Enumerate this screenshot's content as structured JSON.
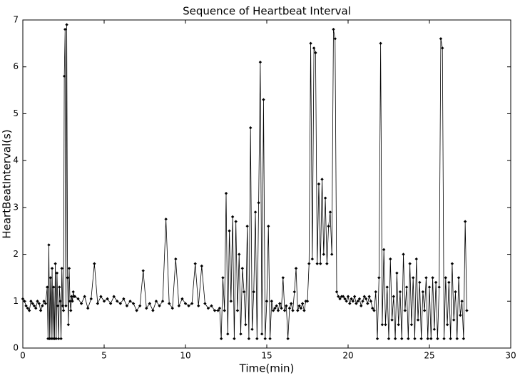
{
  "chart_data": {
    "type": "line",
    "title": "Sequence of Heartbeat Interval",
    "x_label": "Time(min)",
    "y_label": "HeartBeatInterval(s)",
    "xlim": [
      0,
      30
    ],
    "ylim": [
      0,
      7
    ],
    "xticks": [
      0,
      5,
      10,
      15,
      20,
      25,
      30
    ],
    "yticks": [
      0,
      1,
      2,
      3,
      4,
      5,
      6,
      7
    ],
    "x": [
      0,
      0.1,
      0.2,
      0.3,
      0.4,
      0.5,
      0.6,
      0.7,
      0.8,
      0.9,
      1,
      1.1,
      1.2,
      1.3,
      1.4,
      1.5,
      1.55,
      1.6,
      1.65,
      1.7,
      1.75,
      1.8,
      1.85,
      1.9,
      1.95,
      2,
      2.05,
      2.1,
      2.15,
      2.2,
      2.25,
      2.3,
      2.35,
      2.4,
      2.45,
      2.5,
      2.55,
      2.6,
      2.65,
      2.7,
      2.75,
      2.8,
      2.85,
      2.9,
      2.95,
      3,
      3.05,
      3.1,
      3.15,
      3.2,
      3.4,
      3.6,
      3.8,
      4,
      4.2,
      4.4,
      4.6,
      4.8,
      5,
      5.2,
      5.4,
      5.6,
      5.8,
      6,
      6.2,
      6.4,
      6.6,
      6.8,
      7,
      7.2,
      7.4,
      7.6,
      7.8,
      8,
      8.2,
      8.4,
      8.6,
      8.8,
      9,
      9.2,
      9.4,
      9.6,
      9.8,
      10,
      10.2,
      10.4,
      10.6,
      10.8,
      11,
      11.2,
      11.4,
      11.6,
      11.8,
      12,
      12.1,
      12.2,
      12.3,
      12.4,
      12.5,
      12.6,
      12.7,
      12.8,
      12.9,
      13,
      13.1,
      13.2,
      13.3,
      13.4,
      13.5,
      13.6,
      13.7,
      13.8,
      13.9,
      14,
      14.1,
      14.2,
      14.3,
      14.4,
      14.5,
      14.6,
      14.7,
      14.8,
      14.9,
      15,
      15.1,
      15.2,
      15.3,
      15.4,
      15.5,
      15.6,
      15.7,
      15.8,
      15.9,
      16,
      16.1,
      16.2,
      16.3,
      16.4,
      16.5,
      16.6,
      16.7,
      16.8,
      16.9,
      17,
      17.1,
      17.2,
      17.3,
      17.4,
      17.5,
      17.6,
      17.7,
      17.8,
      17.9,
      18,
      18.1,
      18.2,
      18.3,
      18.4,
      18.5,
      18.6,
      18.7,
      18.8,
      18.9,
      19,
      19.1,
      19.2,
      19.3,
      19.4,
      19.5,
      19.6,
      19.7,
      19.8,
      19.9,
      20,
      20.1,
      20.2,
      20.3,
      20.4,
      20.5,
      20.6,
      20.7,
      20.8,
      20.9,
      21,
      21.1,
      21.2,
      21.3,
      21.4,
      21.5,
      21.6,
      21.7,
      21.8,
      21.9,
      22,
      22.1,
      22.2,
      22.3,
      22.4,
      22.5,
      22.6,
      22.7,
      22.8,
      22.9,
      23,
      23.1,
      23.2,
      23.3,
      23.4,
      23.5,
      23.6,
      23.7,
      23.8,
      23.9,
      24,
      24.1,
      24.2,
      24.3,
      24.4,
      24.5,
      24.6,
      24.7,
      24.8,
      24.9,
      25,
      25.1,
      25.2,
      25.3,
      25.4,
      25.5,
      25.6,
      25.7,
      25.8,
      25.9,
      26,
      26.1,
      26.2,
      26.3,
      26.4,
      26.5,
      26.6,
      26.7,
      26.8,
      26.9,
      27,
      27.1,
      27.2,
      27.3
    ],
    "series": [
      {
        "color": "#000000",
        "values": [
          1.05,
          1,
          0.9,
          0.85,
          0.8,
          1,
          0.95,
          0.9,
          0.85,
          1,
          0.95,
          0.8,
          0.9,
          1,
          0.95,
          1.3,
          0.2,
          2.2,
          0.2,
          1.5,
          0.2,
          1.7,
          0.2,
          1.3,
          0.2,
          1.8,
          0.2,
          1.6,
          0.9,
          0.2,
          1.3,
          1,
          0.2,
          1.7,
          0.9,
          0.8,
          5.8,
          6.8,
          0.9,
          6.9,
          1.5,
          0.5,
          1.7,
          1,
          0.8,
          1.1,
          1,
          1.2,
          1.1,
          1.1,
          1.05,
          0.95,
          1.1,
          0.85,
          1.05,
          1.8,
          0.95,
          1.1,
          1,
          1.05,
          0.95,
          1.1,
          1,
          0.95,
          1.05,
          0.9,
          1,
          0.95,
          0.8,
          0.9,
          1.65,
          0.85,
          0.95,
          0.8,
          1,
          0.9,
          1,
          2.75,
          0.95,
          0.85,
          1.9,
          0.9,
          1.05,
          0.95,
          0.9,
          0.95,
          1.8,
          0.9,
          1.75,
          0.95,
          0.85,
          0.9,
          0.8,
          0.8,
          0.85,
          0.2,
          1.5,
          0.8,
          3.3,
          0.3,
          2.5,
          1,
          2.8,
          0.2,
          2.7,
          0.8,
          2,
          0.3,
          1.7,
          1.2,
          0.5,
          2.6,
          0.2,
          4.7,
          0.4,
          1.2,
          2.9,
          0.2,
          3.1,
          6.1,
          0.3,
          5.3,
          0.2,
          1,
          2.6,
          0.2,
          1,
          0.8,
          0.85,
          0.9,
          0.8,
          0.95,
          0.85,
          1.5,
          0.8,
          0.9,
          0.2,
          0.85,
          0.95,
          0.8,
          1.2,
          1.7,
          0.8,
          0.9,
          0.85,
          0.95,
          0.8,
          1,
          1,
          1.8,
          6.5,
          1.9,
          6.4,
          6.3,
          1.8,
          3.5,
          1.8,
          3.6,
          2,
          3.2,
          1.8,
          2.6,
          2.9,
          2,
          6.8,
          6.6,
          1.2,
          1.1,
          1.05,
          1.1,
          1.1,
          1.05,
          1,
          1.1,
          0.95,
          1.05,
          1,
          1.1,
          0.95,
          1,
          1.05,
          0.9,
          1,
          1.1,
          1.05,
          0.95,
          1.1,
          1,
          0.85,
          0.8,
          1.2,
          0.2,
          1.5,
          6.5,
          0.5,
          2.1,
          0.5,
          1.3,
          0.2,
          1.9,
          0.6,
          1.1,
          0.2,
          1.6,
          0.5,
          1.2,
          0.2,
          2,
          0.8,
          1.3,
          0.2,
          1.8,
          0.5,
          1.5,
          0.2,
          1.9,
          0.6,
          1.4,
          0.2,
          1.2,
          0.8,
          1.5,
          0.2,
          1.3,
          0.2,
          1.5,
          0.4,
          1.4,
          0.2,
          1.3,
          6.6,
          6.4,
          0.2,
          1.5,
          0.5,
          1.4,
          0.2,
          1.8,
          0.6,
          1.2,
          0.2,
          1.5,
          0.7,
          1,
          0.2,
          2.7,
          0.8
        ]
      }
    ]
  }
}
